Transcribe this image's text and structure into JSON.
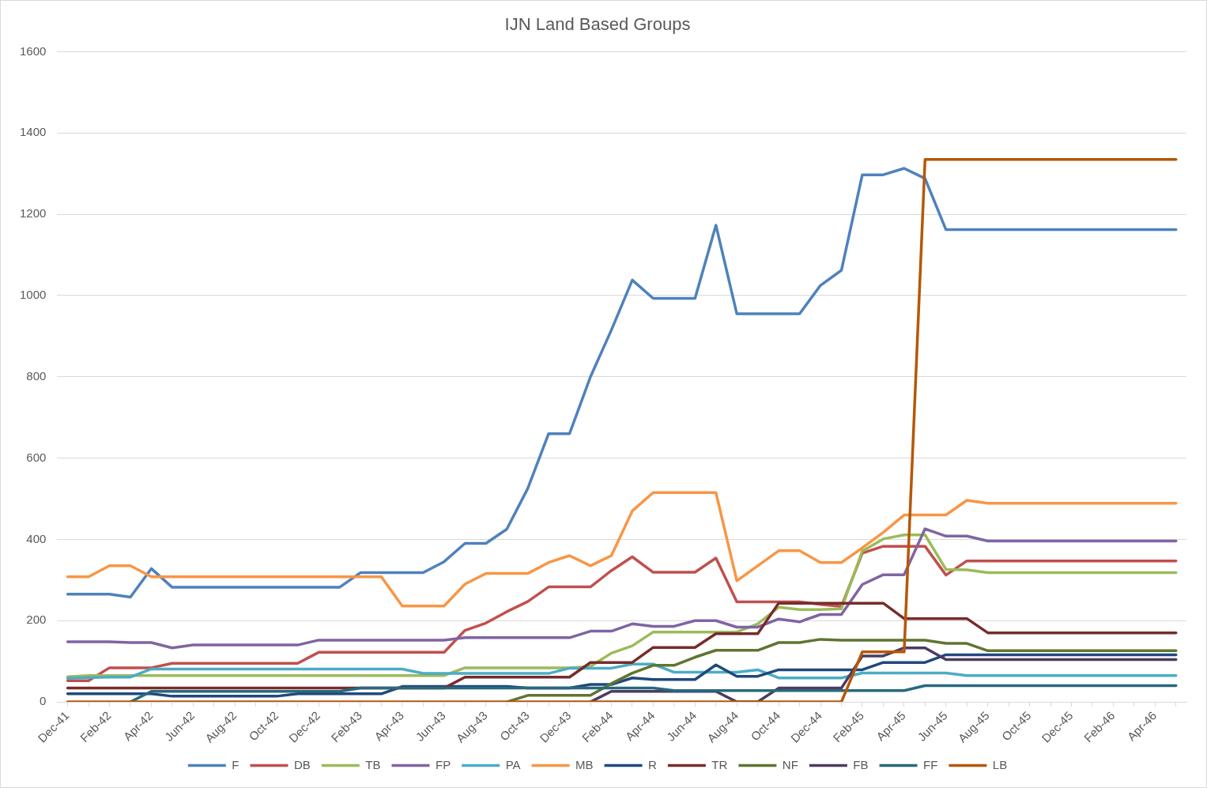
{
  "chart_data": {
    "type": "line",
    "title": "IJN Land Based Groups",
    "categories": [
      "Dec-41",
      null,
      "Feb-42",
      null,
      "Apr-42",
      null,
      "Jun-42",
      null,
      "Aug-42",
      null,
      "Oct-42",
      null,
      "Dec-42",
      null,
      "Feb-43",
      null,
      "Apr-43",
      null,
      "Jun-43",
      null,
      "Aug-43",
      null,
      "Oct-43",
      null,
      "Dec-43",
      null,
      "Feb-44",
      null,
      "Apr-44",
      null,
      "Jun-44",
      null,
      "Aug-44",
      null,
      "Oct-44",
      null,
      "Dec-44",
      null,
      "Feb-45",
      null,
      "Apr-45",
      null,
      "Jun-45",
      null,
      "Aug-45",
      null,
      "Oct-45",
      null,
      "Dec-45",
      null,
      "Feb-46",
      null,
      "Apr-46",
      null
    ],
    "ylim": [
      0,
      1600
    ],
    "yticks": [
      0,
      200,
      400,
      600,
      800,
      1000,
      1200,
      1400,
      1600
    ],
    "grid": "y",
    "legend": "bottom",
    "marker": "none",
    "line_style": "solid",
    "series": [
      {
        "name": "F",
        "color": "#4f81bd",
        "values": [
          265,
          265,
          265,
          258,
          328,
          282,
          282,
          282,
          282,
          282,
          282,
          282,
          282,
          282,
          318,
          318,
          318,
          318,
          345,
          390,
          390,
          425,
          525,
          660,
          660,
          800,
          915,
          1038,
          993,
          993,
          993,
          1173,
          955,
          955,
          955,
          955,
          1025,
          1062,
          1297,
          1297,
          1313,
          1288,
          1162,
          1162,
          1162,
          1162,
          1162,
          1162,
          1162,
          1162,
          1162,
          1162,
          1162,
          1162
        ]
      },
      {
        "name": "DB",
        "color": "#c0504d",
        "values": [
          52,
          52,
          84,
          84,
          84,
          95,
          95,
          95,
          95,
          95,
          95,
          95,
          122,
          122,
          122,
          122,
          122,
          122,
          122,
          176,
          194,
          222,
          247,
          283,
          283,
          283,
          323,
          357,
          319,
          319,
          319,
          354,
          246,
          246,
          246,
          246,
          240,
          235,
          366,
          383,
          383,
          383,
          312,
          347,
          347,
          347,
          347,
          347,
          347,
          347,
          347,
          347,
          347,
          347
        ]
      },
      {
        "name": "TB",
        "color": "#9bbb59",
        "values": [
          62,
          65,
          65,
          65,
          65,
          65,
          65,
          65,
          65,
          65,
          65,
          65,
          65,
          65,
          65,
          65,
          65,
          65,
          65,
          84,
          84,
          84,
          84,
          84,
          84,
          87,
          120,
          138,
          172,
          172,
          172,
          172,
          172,
          192,
          233,
          227,
          227,
          229,
          371,
          401,
          411,
          411,
          326,
          325,
          318,
          318,
          318,
          318,
          318,
          318,
          318,
          318,
          318,
          318
        ]
      },
      {
        "name": "FP",
        "color": "#8064a2",
        "values": [
          148,
          148,
          148,
          146,
          146,
          133,
          140,
          140,
          140,
          140,
          140,
          140,
          152,
          152,
          152,
          152,
          152,
          152,
          152,
          158,
          158,
          158,
          158,
          158,
          158,
          174,
          174,
          192,
          186,
          186,
          200,
          200,
          184,
          184,
          204,
          197,
          215,
          215,
          289,
          313,
          313,
          426,
          408,
          408,
          396,
          396,
          396,
          396,
          396,
          396,
          396,
          396,
          396,
          396
        ]
      },
      {
        "name": "PA",
        "color": "#4bacc6",
        "values": [
          58,
          60,
          61,
          61,
          81,
          81,
          81,
          81,
          81,
          81,
          81,
          81,
          81,
          81,
          81,
          81,
          81,
          70,
          70,
          70,
          70,
          70,
          70,
          70,
          83,
          83,
          83,
          93,
          93,
          73,
          73,
          73,
          73,
          79,
          59,
          59,
          59,
          59,
          71,
          71,
          71,
          71,
          71,
          65,
          65,
          65,
          65,
          65,
          65,
          65,
          65,
          65,
          65,
          65
        ]
      },
      {
        "name": "MB",
        "color": "#f79646",
        "values": [
          308,
          308,
          335,
          335,
          308,
          308,
          308,
          308,
          308,
          308,
          308,
          308,
          308,
          308,
          308,
          308,
          236,
          236,
          236,
          290,
          316,
          316,
          316,
          343,
          360,
          335,
          360,
          470,
          515,
          515,
          515,
          515,
          298,
          335,
          372,
          372,
          343,
          343,
          379,
          417,
          460,
          460,
          460,
          496,
          489,
          489,
          489,
          489,
          489,
          489,
          489,
          489,
          489,
          489
        ]
      },
      {
        "name": "R",
        "color": "#1f497d",
        "values": [
          20,
          20,
          20,
          20,
          20,
          14,
          14,
          14,
          14,
          14,
          14,
          20,
          20,
          20,
          20,
          20,
          38,
          38,
          38,
          38,
          38,
          38,
          34,
          34,
          34,
          43,
          43,
          59,
          55,
          55,
          55,
          91,
          63,
          63,
          79,
          79,
          79,
          79,
          79,
          97,
          97,
          97,
          116,
          116,
          116,
          116,
          116,
          116,
          116,
          116,
          116,
          116,
          116,
          116
        ]
      },
      {
        "name": "TR",
        "color": "#772c2a",
        "values": [
          34,
          34,
          34,
          34,
          34,
          34,
          34,
          34,
          34,
          34,
          34,
          34,
          34,
          34,
          34,
          34,
          34,
          34,
          34,
          61,
          61,
          61,
          61,
          61,
          61,
          97,
          97,
          97,
          134,
          134,
          134,
          168,
          168,
          168,
          243,
          243,
          243,
          243,
          243,
          243,
          205,
          205,
          205,
          205,
          170,
          170,
          170,
          170,
          170,
          170,
          170,
          170,
          170,
          170
        ]
      },
      {
        "name": "NF",
        "color": "#5f7530",
        "values": [
          null,
          null,
          null,
          null,
          null,
          null,
          null,
          null,
          null,
          null,
          null,
          null,
          null,
          null,
          null,
          null,
          null,
          null,
          null,
          null,
          null,
          0,
          16,
          16,
          16,
          16,
          45,
          71,
          90,
          90,
          110,
          127,
          127,
          127,
          146,
          146,
          154,
          152,
          152,
          152,
          152,
          152,
          144,
          144,
          126,
          126,
          126,
          126,
          126,
          126,
          126,
          126,
          126,
          126
        ]
      },
      {
        "name": "FB",
        "color": "#4d3b62",
        "values": [
          null,
          null,
          null,
          null,
          null,
          null,
          null,
          null,
          null,
          null,
          null,
          null,
          null,
          null,
          null,
          null,
          null,
          null,
          null,
          null,
          null,
          null,
          null,
          null,
          null,
          0,
          26,
          26,
          26,
          26,
          26,
          26,
          0,
          0,
          34,
          34,
          34,
          34,
          113,
          113,
          133,
          133,
          104,
          104,
          104,
          104,
          104,
          104,
          104,
          104,
          104,
          104,
          104,
          104
        ]
      },
      {
        "name": "FF",
        "color": "#276a7c",
        "values": [
          null,
          null,
          null,
          0,
          26,
          26,
          26,
          26,
          26,
          26,
          26,
          26,
          26,
          26,
          34,
          34,
          34,
          34,
          34,
          34,
          34,
          34,
          34,
          34,
          34,
          34,
          34,
          34,
          34,
          28,
          28,
          28,
          28,
          28,
          28,
          28,
          28,
          28,
          28,
          28,
          28,
          40,
          40,
          40,
          40,
          40,
          40,
          40,
          40,
          40,
          40,
          40,
          40,
          40
        ]
      },
      {
        "name": "LB",
        "color": "#b65708",
        "values": [
          0,
          0,
          0,
          0,
          0,
          0,
          0,
          0,
          0,
          0,
          0,
          0,
          0,
          0,
          0,
          0,
          0,
          0,
          0,
          0,
          0,
          0,
          0,
          0,
          0,
          0,
          0,
          0,
          0,
          0,
          0,
          0,
          0,
          0,
          0,
          0,
          0,
          0,
          123,
          123,
          123,
          1335,
          1335,
          1335,
          1335,
          1335,
          1335,
          1335,
          1335,
          1335,
          1335,
          1335,
          1335,
          1335
        ]
      }
    ]
  }
}
